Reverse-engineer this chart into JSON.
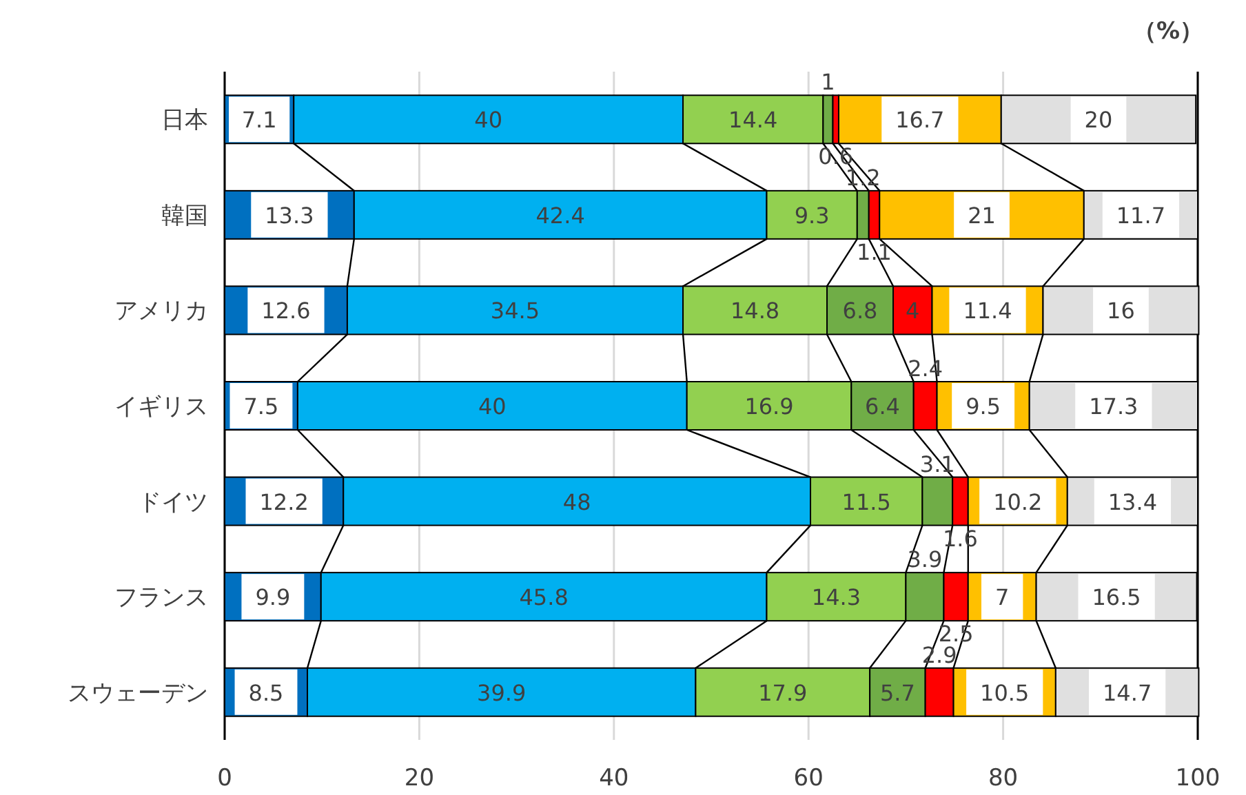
{
  "chart_data": {
    "type": "bar",
    "orientation": "horizontal",
    "stacked": true,
    "data_labels": true,
    "grid": "x",
    "categories": [
      "日本",
      "韓国",
      "アメリカ",
      "イギリス",
      "ドイツ",
      "フランス",
      "スウェーデン"
    ],
    "xlim": [
      0,
      100
    ],
    "xticks": [
      0,
      20,
      40,
      60,
      80,
      100
    ],
    "annotations": [
      "（%）"
    ],
    "series": [
      {
        "color": "#0070c0",
        "values": [
          7.1,
          13.3,
          12.6,
          7.5,
          12.2,
          9.9,
          8.5
        ]
      },
      {
        "color": "#00b0f0",
        "values": [
          40,
          42.4,
          34.5,
          40,
          48,
          45.8,
          39.9
        ]
      },
      {
        "color": "#92d050",
        "values": [
          14.4,
          9.3,
          14.8,
          16.9,
          11.5,
          14.3,
          17.9
        ]
      },
      {
        "color": "#70ad47",
        "values": [
          1.0,
          1.2,
          6.8,
          6.4,
          3.1,
          3.9,
          5.7
        ]
      },
      {
        "color": "#ff0000",
        "values": [
          0.6,
          1.1,
          4,
          2.4,
          1.6,
          2.5,
          2.9
        ]
      },
      {
        "color": "#ffc000",
        "values": [
          16.7,
          21,
          11.4,
          9.5,
          10.2,
          7,
          10.5
        ]
      },
      {
        "color": "#e0e0e0",
        "values": [
          20,
          11.7,
          16,
          17.3,
          13.4,
          16.5,
          14.7
        ]
      }
    ]
  }
}
